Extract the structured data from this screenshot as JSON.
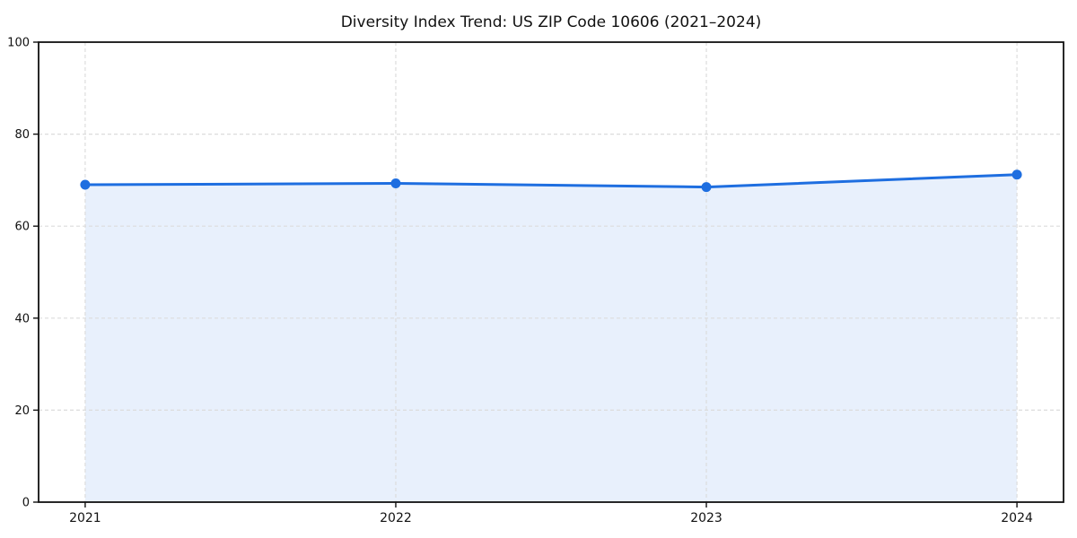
{
  "page": {
    "background": "#ffffff"
  },
  "chart_data": {
    "type": "area",
    "title": "Diversity Index Trend: US ZIP Code 10606 (2021–2024)",
    "categories": [
      "2021",
      "2022",
      "2023",
      "2024"
    ],
    "values": [
      69.0,
      69.3,
      68.5,
      71.2
    ],
    "series": [
      {
        "name": "Diversity Index",
        "values": [
          69.0,
          69.3,
          68.5,
          71.2
        ]
      }
    ],
    "xlabel": "",
    "ylabel": "",
    "ylim": [
      0,
      100
    ],
    "yticks": [
      0,
      20,
      40,
      60,
      80,
      100
    ],
    "grid": true,
    "grid_style": "dashed",
    "legend_position": "none",
    "colors": {
      "line": "#1e6ee0",
      "marker": "#1e6ee0",
      "fill": "rgba(30, 110, 224, 0.10)",
      "grid": "#dcdcdc",
      "axis": "#111111",
      "text": "#111111"
    }
  }
}
